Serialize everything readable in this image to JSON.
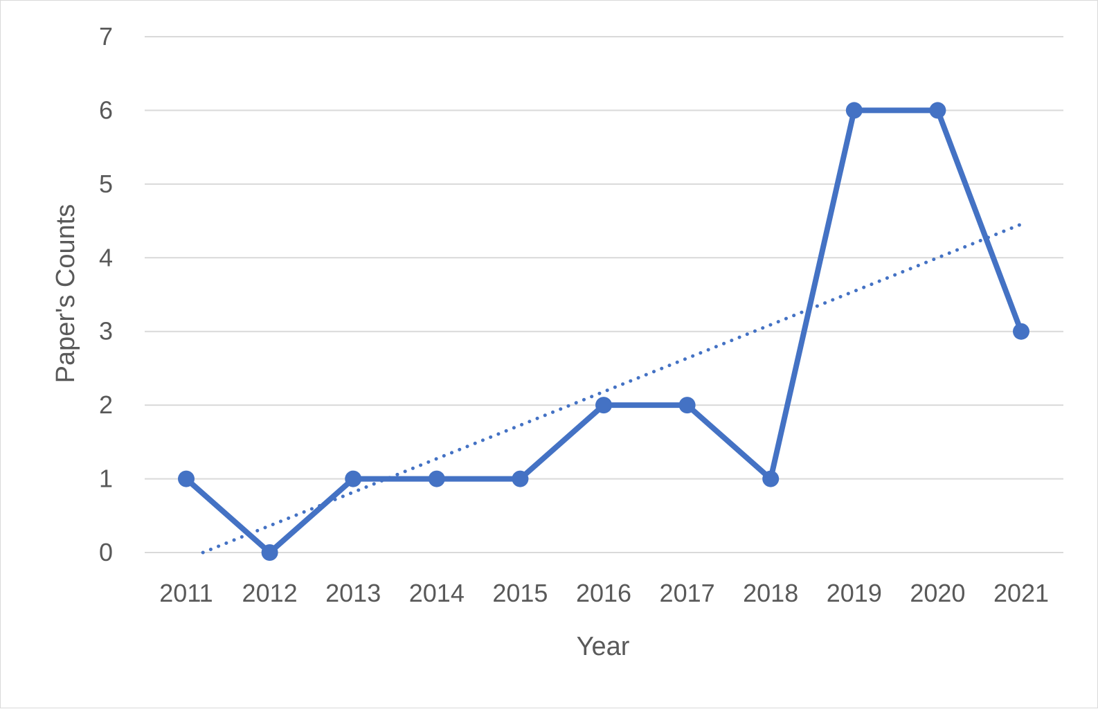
{
  "chart_data": {
    "type": "line",
    "title": "",
    "xlabel": "Year",
    "ylabel": "Paper's Counts",
    "categories": [
      "2011",
      "2012",
      "2013",
      "2014",
      "2015",
      "2016",
      "2017",
      "2018",
      "2019",
      "2020",
      "2021"
    ],
    "series": [
      {
        "values": [
          1,
          0,
          1,
          1,
          1,
          2,
          2,
          1,
          6,
          6,
          3
        ],
        "color": "#4472c4",
        "markers": true,
        "line_style": "solid"
      }
    ],
    "trendline": {
      "type": "linear",
      "style": "dotted",
      "color": "#4472c4",
      "from_category": "2011",
      "to_category": "2021"
    },
    "ylim": [
      0,
      7
    ],
    "yticks": [
      "0",
      "1",
      "2",
      "3",
      "4",
      "5",
      "6",
      "7"
    ],
    "grid": true,
    "legend": "none"
  }
}
